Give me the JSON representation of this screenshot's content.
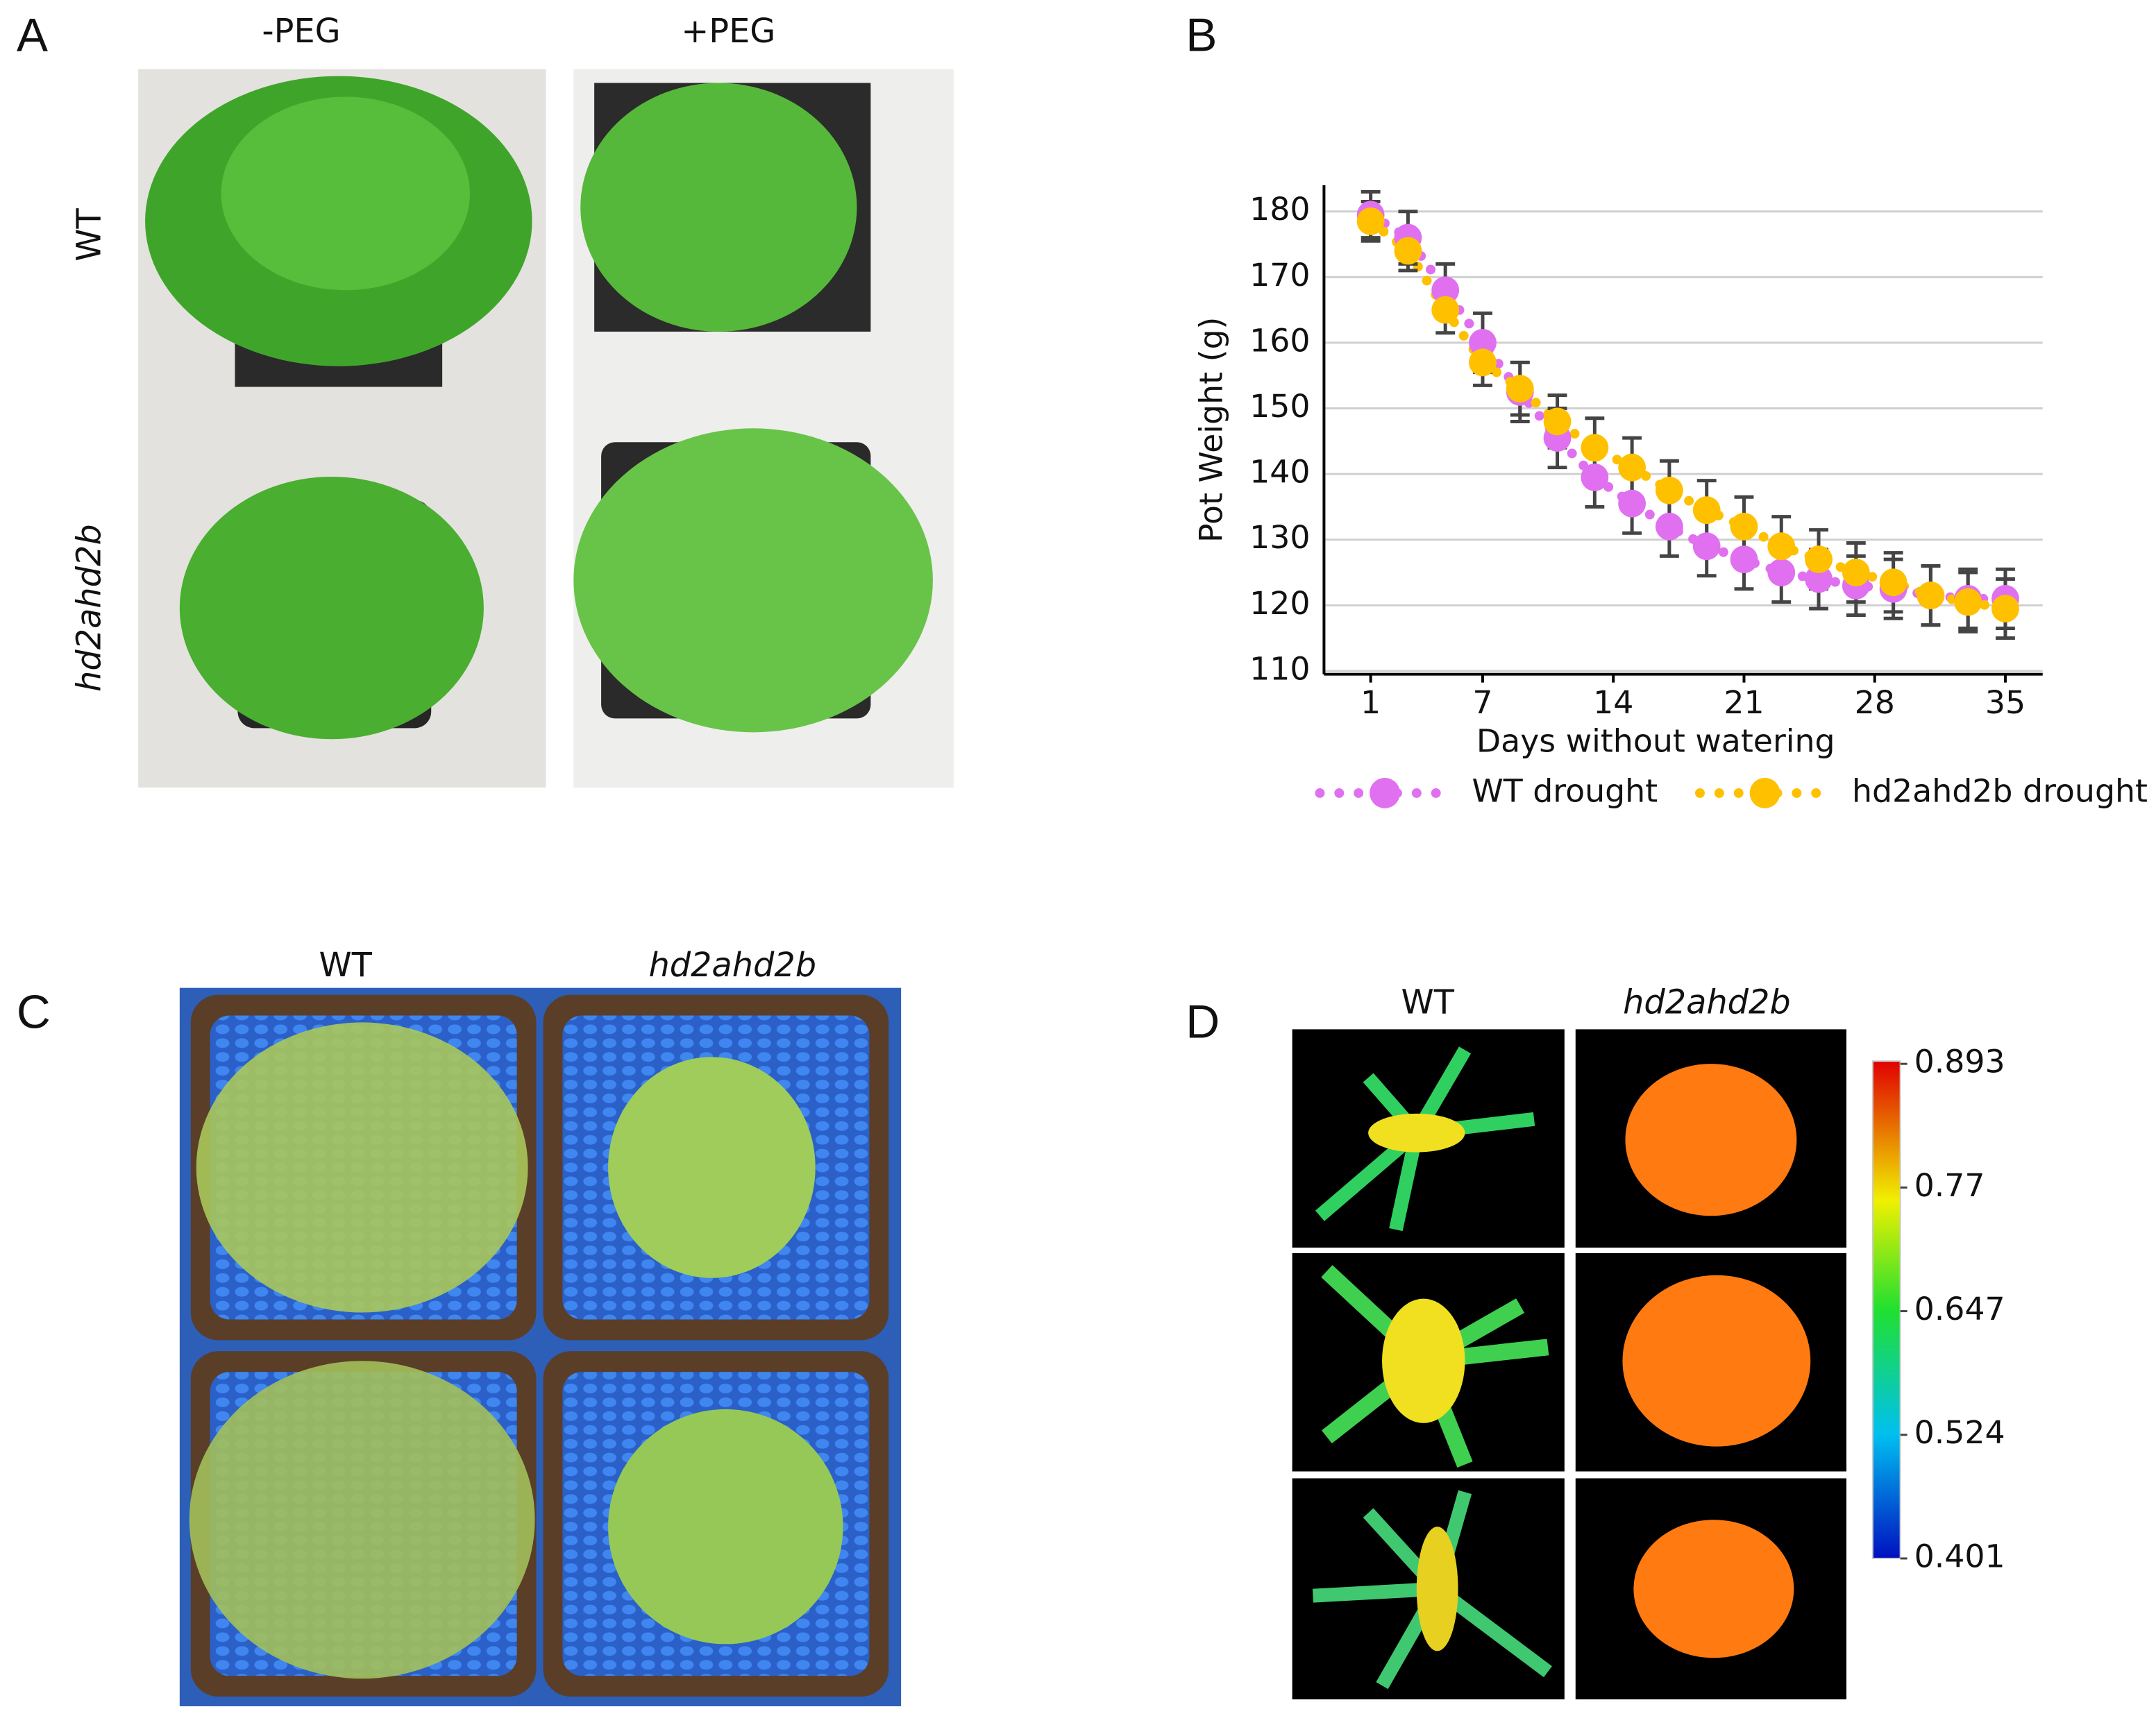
{
  "panel_a": {
    "label": "A",
    "columns": [
      "-PEG",
      "+PEG"
    ],
    "rows": [
      "WT",
      "hd2ahd2b"
    ]
  },
  "chart_data": {
    "panel_label": "B",
    "type": "line",
    "x_label": "Days without watering",
    "y_label": "Pot Weight (g)",
    "x": [
      1,
      3,
      5,
      7,
      9,
      11,
      13,
      15,
      17,
      19,
      21,
      23,
      25,
      27,
      29,
      31,
      33,
      35
    ],
    "xlim": [
      -1.5,
      37
    ],
    "xticks": [
      1,
      7,
      14,
      21,
      28,
      35
    ],
    "ylim": [
      109.5,
      184
    ],
    "yticks": [
      110,
      120,
      130,
      140,
      150,
      160,
      170,
      180
    ],
    "grid": true,
    "series": [
      {
        "name": "WT drought",
        "color": "#e070f0",
        "values": [
          179.5,
          176,
          168,
          160,
          152.5,
          145.5,
          139.5,
          135.5,
          132,
          129,
          127,
          125,
          124,
          123,
          122.5,
          121.5,
          121,
          121
        ],
        "errors": [
          3.5,
          4,
          4,
          4.5,
          4.5,
          4.5,
          4.5,
          4.5,
          4.5,
          4.5,
          4.5,
          4.5,
          4.5,
          4.5,
          4.5,
          4.5,
          4.5,
          4.5
        ]
      },
      {
        "name": "hd2ahd2b drought",
        "color": "#ffc000",
        "values": [
          178.5,
          174,
          165,
          157,
          153,
          148,
          144,
          141,
          137.5,
          134.5,
          132,
          129,
          127,
          125,
          123.5,
          121.5,
          120.5,
          119.5
        ],
        "errors": [
          3,
          3,
          3.5,
          3.5,
          4,
          4,
          4.5,
          4.5,
          4.5,
          4.5,
          4.5,
          4.5,
          4.5,
          4.5,
          4.5,
          4.5,
          4.5,
          4.5
        ]
      }
    ]
  },
  "panel_c": {
    "label": "C",
    "columns": [
      "WT",
      "hd2ahd2b"
    ]
  },
  "panel_d": {
    "label": "D",
    "columns": [
      "WT",
      "hd2ahd2b"
    ],
    "colorbar": {
      "lim": [
        0.401,
        0.893
      ],
      "ticks": [
        0.401,
        0.524,
        0.647,
        0.77,
        0.893
      ]
    }
  }
}
